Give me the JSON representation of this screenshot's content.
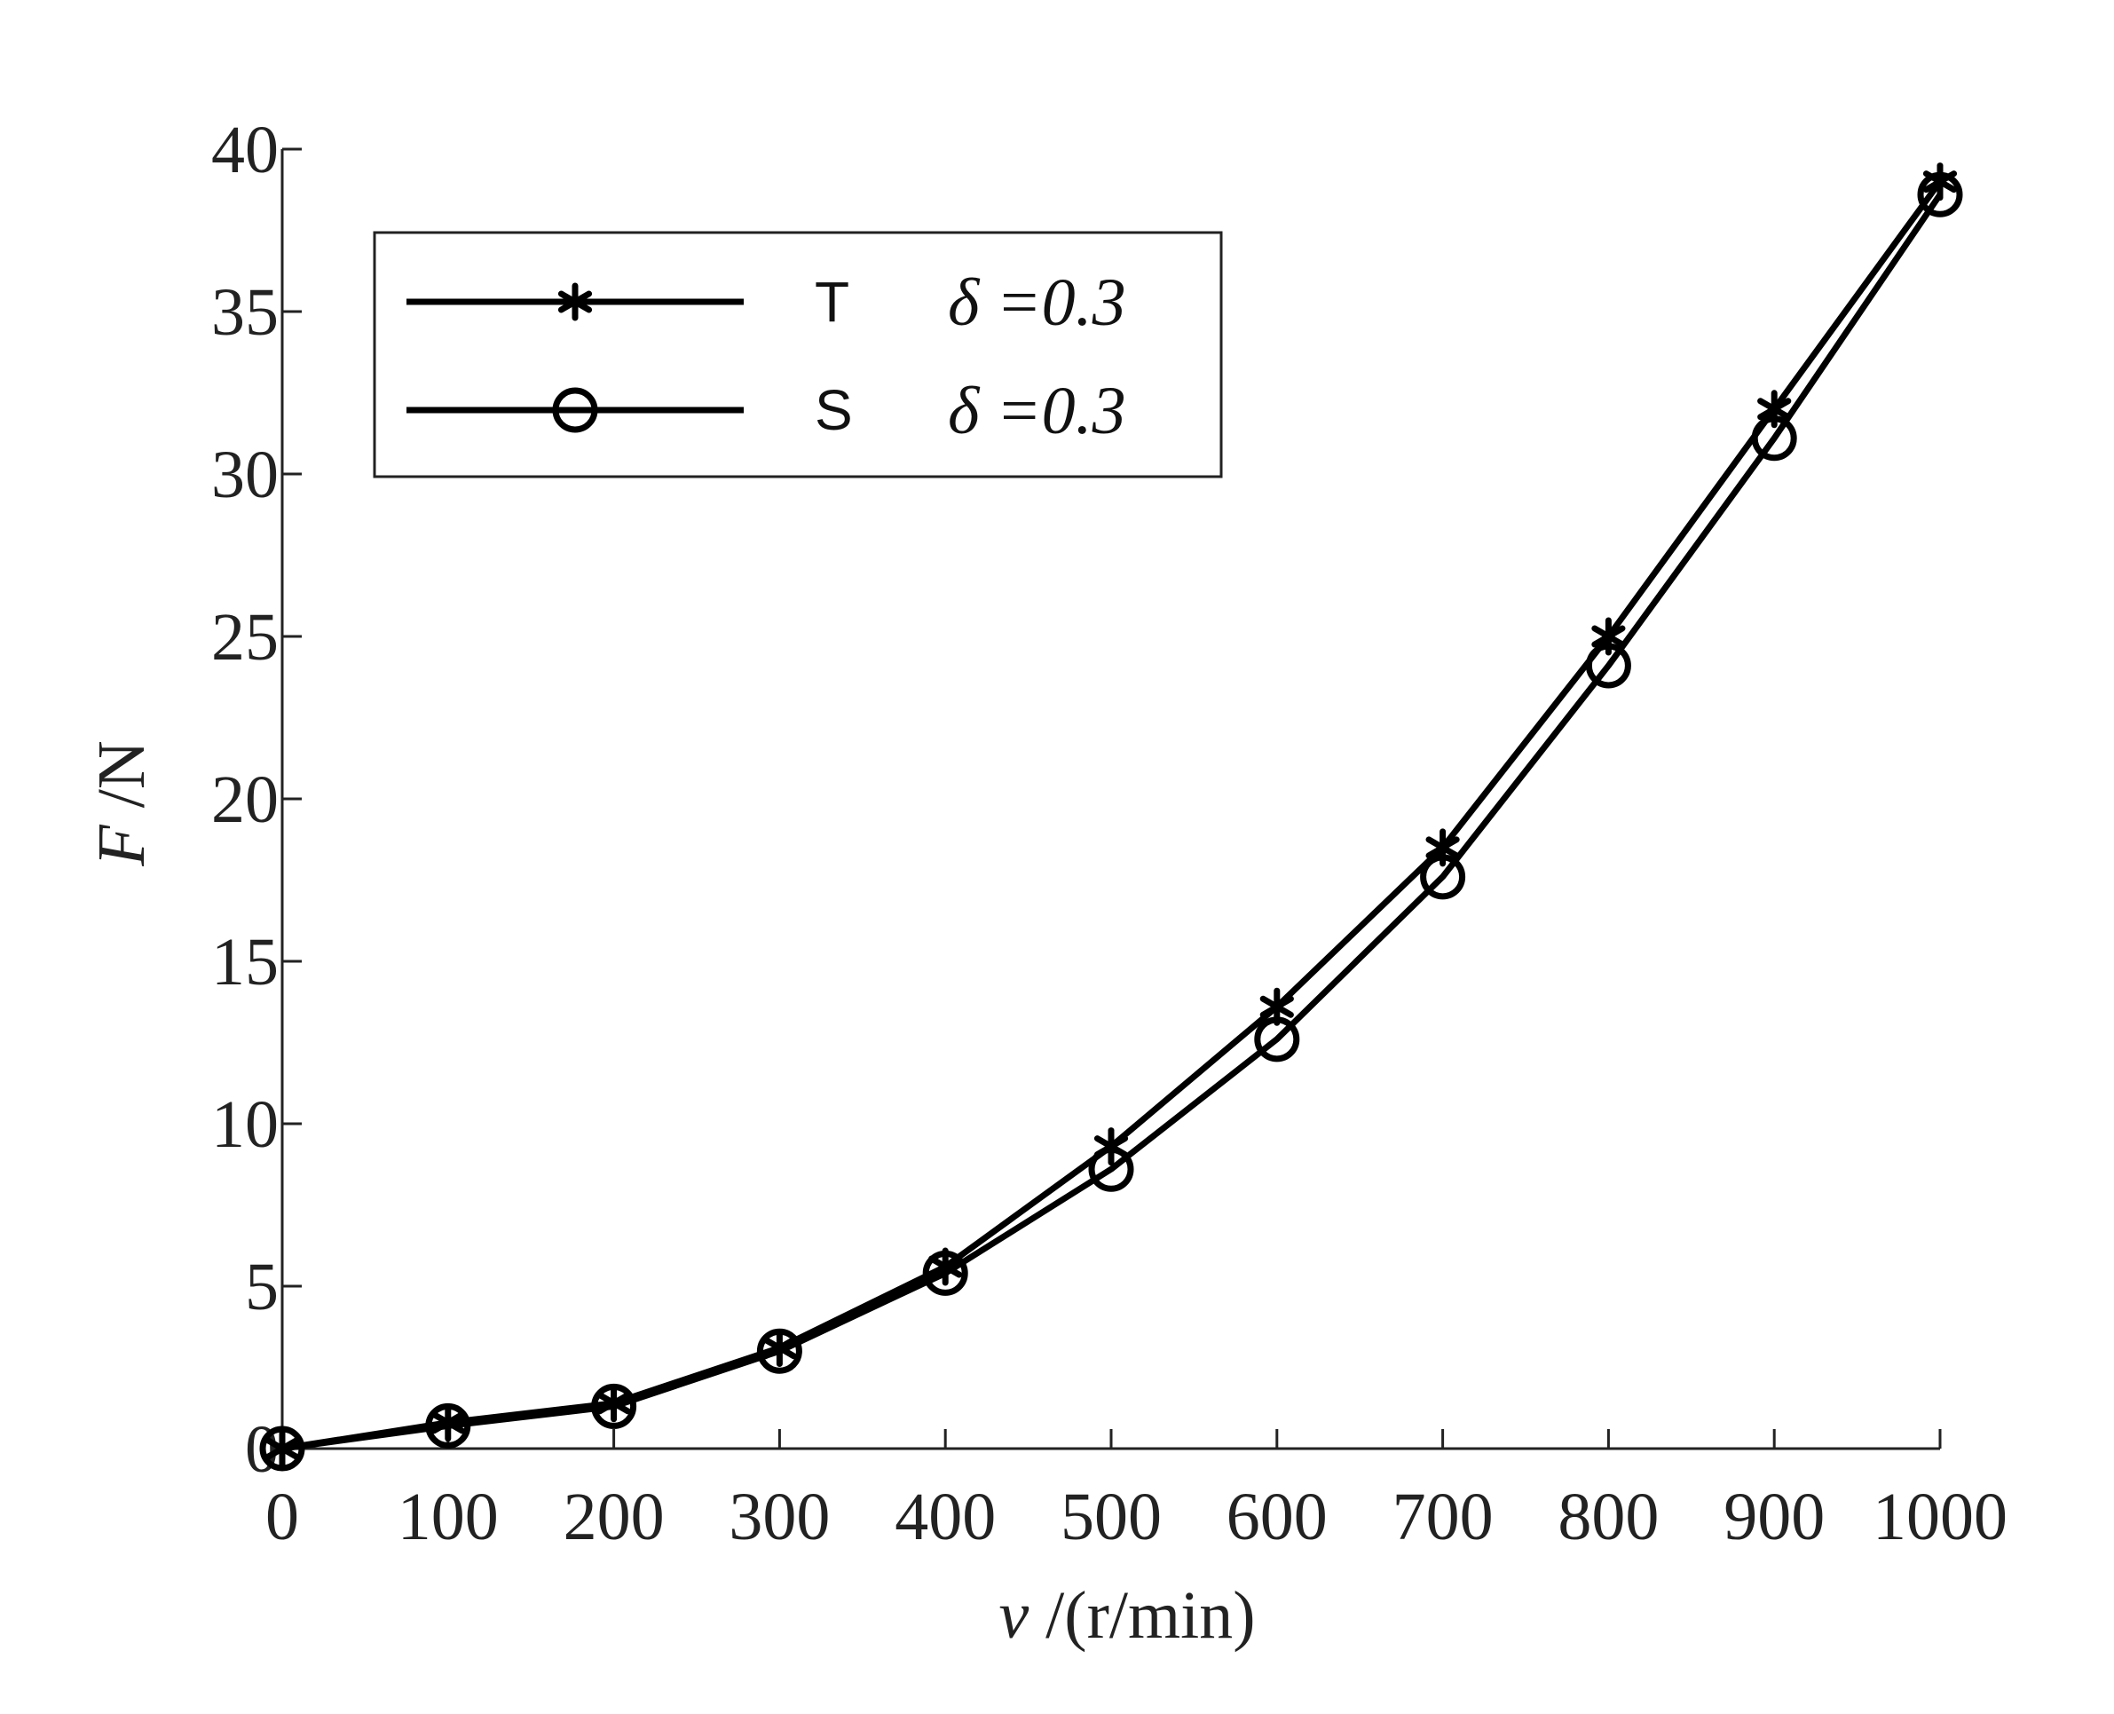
{
  "chart_data": {
    "type": "line",
    "title": "",
    "xlabel": {
      "var": "v",
      "unit": " /(r/min)"
    },
    "ylabel": {
      "var": "F",
      "unit": " /N"
    },
    "xlim": [
      0,
      1000
    ],
    "ylim": [
      0,
      40
    ],
    "xticks": [
      0,
      100,
      200,
      300,
      400,
      500,
      600,
      700,
      800,
      900,
      1000
    ],
    "yticks": [
      0,
      5,
      10,
      15,
      20,
      25,
      30,
      35,
      40
    ],
    "grid": false,
    "legend_position": "top-left",
    "x": [
      0,
      100,
      200,
      300,
      400,
      500,
      600,
      700,
      800,
      900,
      1000
    ],
    "series": [
      {
        "name": "T",
        "param": "δ =0.3",
        "marker": "asterisk",
        "color": "#000000",
        "values": [
          0,
          0.8,
          1.4,
          3.1,
          5.6,
          9.3,
          13.6,
          18.5,
          25.0,
          32.0,
          39.0
        ]
      },
      {
        "name": "S",
        "param": "δ =0.3",
        "marker": "circle",
        "color": "#000000",
        "values": [
          0,
          0.7,
          1.3,
          3.0,
          5.4,
          8.6,
          12.6,
          17.6,
          24.1,
          31.1,
          38.6
        ]
      }
    ]
  }
}
